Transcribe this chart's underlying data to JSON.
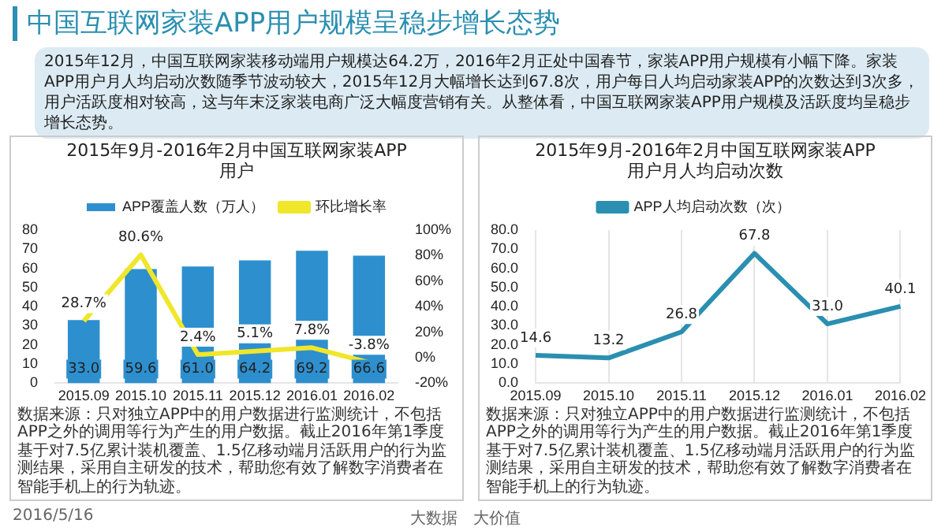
{
  "chart_data": [
    {
      "type": "bar",
      "title": "2015年9月-2016年2月中国互联网家装APP用户",
      "categories": [
        "2015.09",
        "2015.10",
        "2015.11",
        "2015.12",
        "2016.01",
        "2016.02"
      ],
      "series": [
        {
          "name": "APP覆盖人数（万人）",
          "type": "bar",
          "color": "#2e8fce",
          "values": [
            33.0,
            59.6,
            61.0,
            64.2,
            69.2,
            66.6
          ],
          "value_labels": [
            "33.0",
            "59.6",
            "61.0",
            "64.2",
            "69.2",
            "66.6"
          ]
        },
        {
          "name": "环比增长率",
          "type": "line",
          "axis": "y2",
          "color": "#f0e62a",
          "values": [
            28.7,
            80.6,
            2.4,
            5.1,
            7.8,
            -3.8
          ],
          "value_labels": [
            "28.7%",
            "80.6%",
            "2.4%",
            "5.1%",
            "7.8%",
            "-3.8%"
          ]
        }
      ],
      "data_labels": true,
      "ylim": [
        0,
        80
      ],
      "yticks": [
        0,
        10,
        20,
        30,
        40,
        50,
        60,
        70,
        80
      ],
      "y2lim": [
        -20,
        100
      ],
      "y2ticks": [
        {
          "value": -20,
          "label": "-20%"
        },
        {
          "value": 0,
          "label": "0%"
        },
        {
          "value": 20,
          "label": "20%"
        },
        {
          "value": 40,
          "label": "40%"
        },
        {
          "value": 60,
          "label": "60%"
        },
        {
          "value": 80,
          "label": "80%"
        },
        {
          "value": 100,
          "label": "100%"
        }
      ],
      "legend": "top",
      "grid": false,
      "marker": "none",
      "annotations": [
        "数据来源：只对独立APP中的用户数据进行监测统计，不包括APP之外的调用等行为产生的用户数据。截止2016年第1季度基于对7.5亿累计装机覆盖、1.5亿移动端月活跃用户的行为监测结果，采用自主研发的技术，帮助您有效了解数字消费者在智能手机上的行为轨迹。",
        "中国互联网家装APP用户规模呈稳步增长态势",
        "2015年12月，中国互联网家装移动端用户规模达64.2万，2016年2月正处中国春节，家装APP用户规模有小幅下降。家装APP用户月人均启动次数随季节波动较大，2015年12月大幅增长达到67.8次，用户每日人均启动家装APP的次数达到3次多，用户活跃度相对较高，这与年末泛家装电商广泛大幅度营销有关。从整体看，中国互联网家装APP用户规模及活跃度均呈稳步增长态势。",
        "2016/5/16",
        "大数据　大价值"
      ]
    },
    {
      "type": "line",
      "title": "2015年9月-2016年2月中国互联网家装APP用户月人均启动次数",
      "categories": [
        "2015.09",
        "2015.10",
        "2015.11",
        "2015.12",
        "2016.01",
        "2016.02"
      ],
      "series": [
        {
          "name": "APP人均启动次数（次）",
          "color": "#2a8fb0",
          "values": [
            14.6,
            13.2,
            26.8,
            67.8,
            31.0,
            40.1
          ],
          "value_labels": [
            "14.6",
            "13.2",
            "26.8",
            "67.8",
            "31.0",
            "40.1"
          ]
        }
      ],
      "data_labels": true,
      "ylim": [
        0,
        80
      ],
      "yticks": [
        {
          "value": 0,
          "label": "0.0"
        },
        {
          "value": 10,
          "label": "10.0"
        },
        {
          "value": 20,
          "label": "20.0"
        },
        {
          "value": 30,
          "label": "30.0"
        },
        {
          "value": 40,
          "label": "40.0"
        },
        {
          "value": 50,
          "label": "50.0"
        },
        {
          "value": 60,
          "label": "60.0"
        },
        {
          "value": 70,
          "label": "70.0"
        },
        {
          "value": 80,
          "label": "80.0"
        }
      ],
      "legend": "top",
      "grid": "x",
      "marker": "none",
      "line_style": "solid",
      "annotations": [
        "数据来源：只对独立APP中的用户数据进行监测统计，不包括APP之外的调用等行为产生的用户数据。截止2016年第1季度基于对7.5亿累计装机覆盖、1.5亿移动端月活跃用户的行为监测结果，采用自主研发的技术，帮助您有效了解数字消费者在智能手机上的行为轨迹。"
      ]
    }
  ]
}
